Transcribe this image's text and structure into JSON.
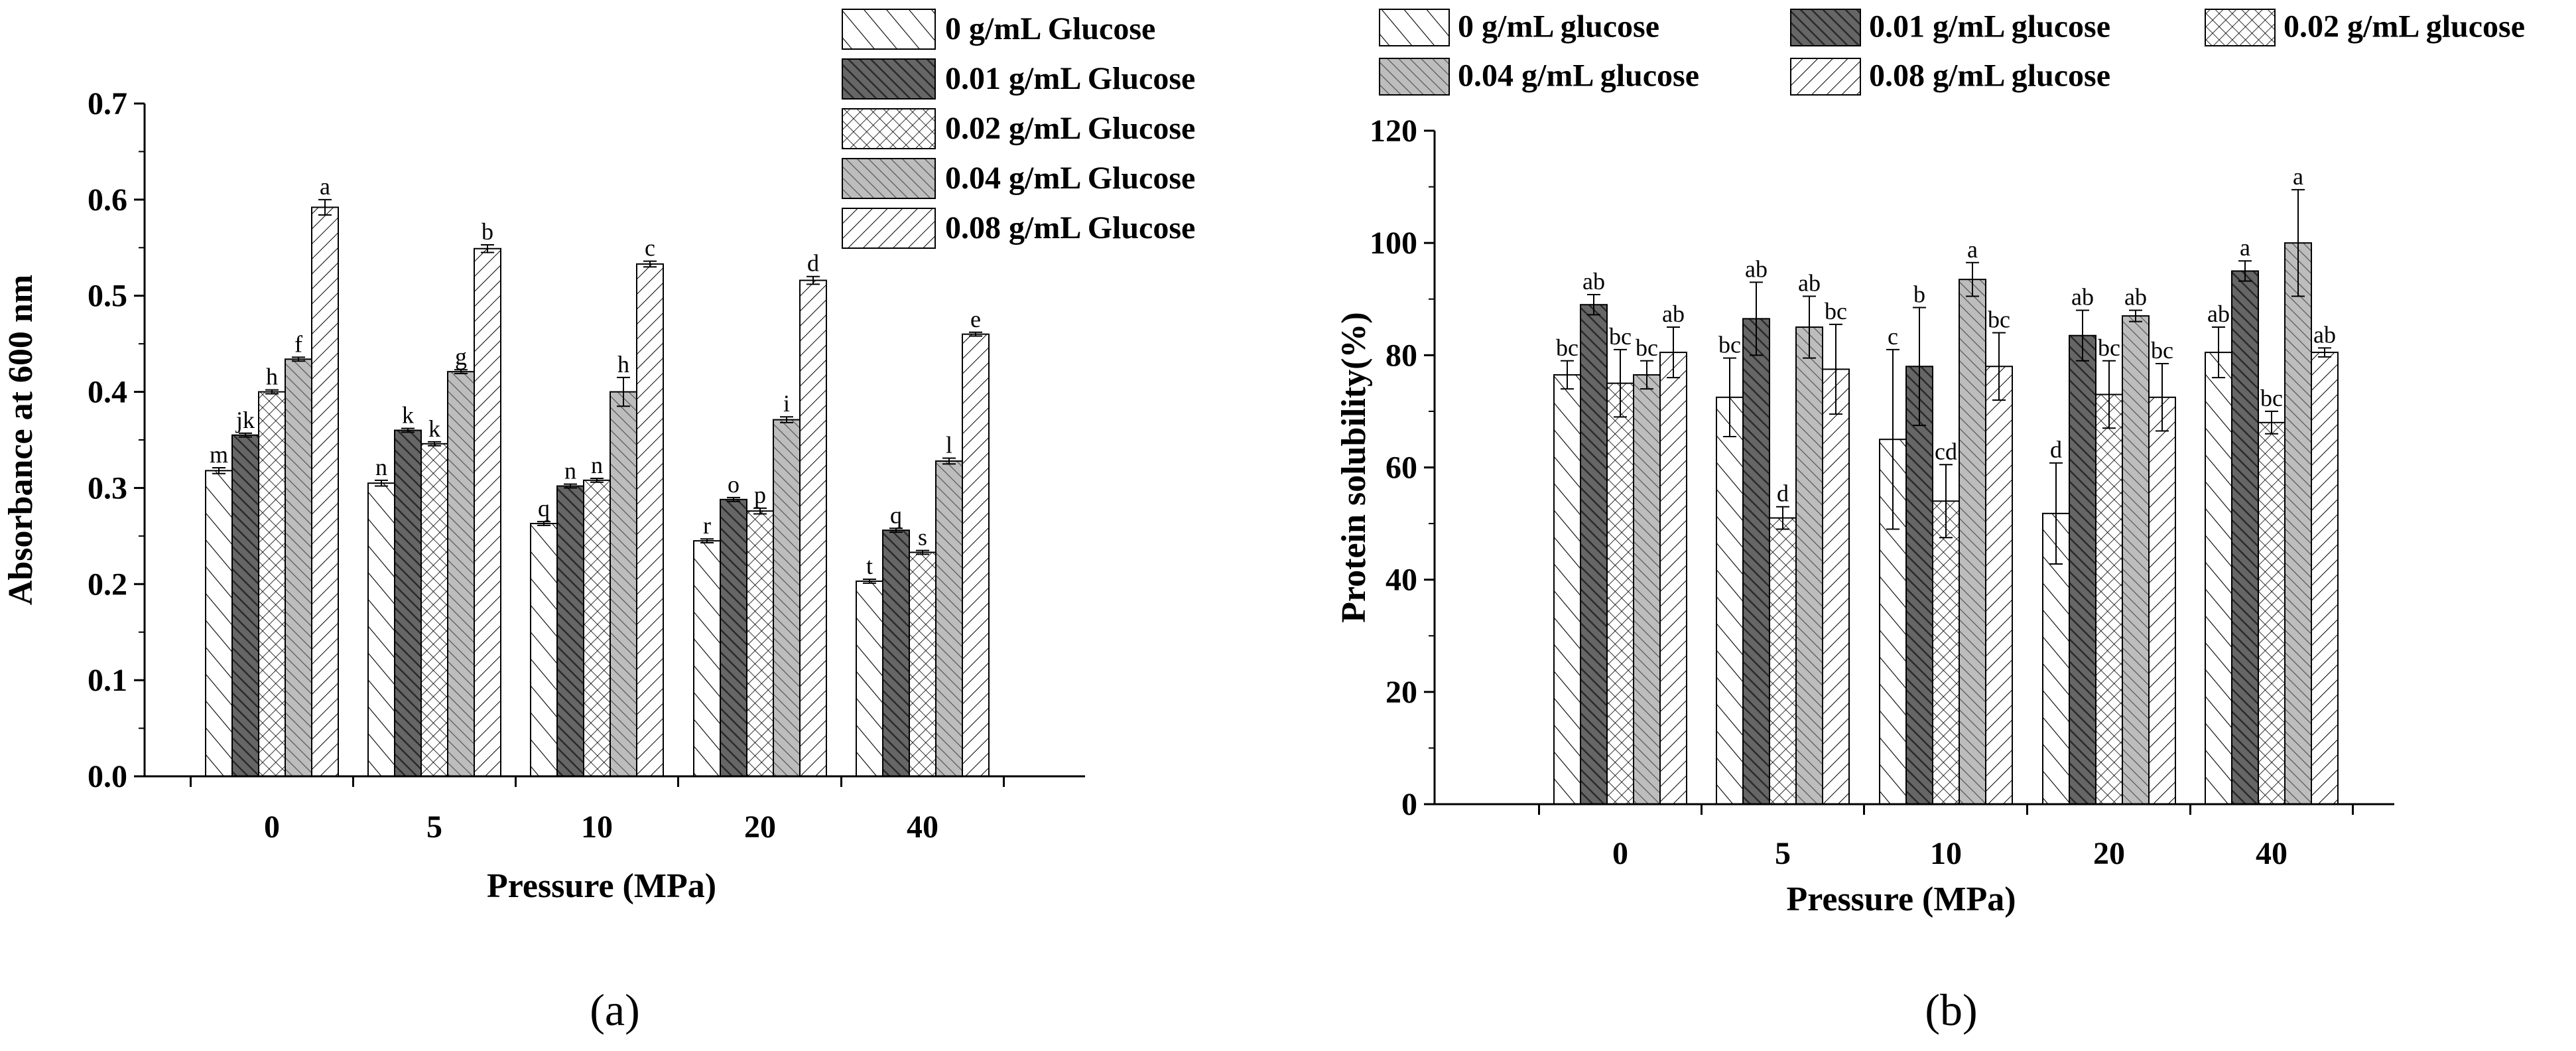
{
  "chart_data": [
    {
      "type": "bar",
      "panel_label": "(a)",
      "title": "",
      "xlabel": "Pressure (MPa)",
      "ylabel": "Absorbance at 600 nm",
      "ylim": [
        0,
        0.7
      ],
      "yticks": [
        "0.0",
        "0.1",
        "0.2",
        "0.3",
        "0.4",
        "0.5",
        "0.6",
        "0.7"
      ],
      "categories": [
        "0",
        "5",
        "10",
        "20",
        "40"
      ],
      "legend_position": "top-right, two-column-free vertical list",
      "series": [
        {
          "name": "0 g/mL Glucose",
          "pattern": "diag-sparse",
          "values": [
            0.318,
            0.305,
            0.263,
            0.245,
            0.203
          ],
          "errors": [
            0.003,
            0.003,
            0.002,
            0.002,
            0.002
          ],
          "letters": [
            "m",
            "n",
            "q",
            "r",
            "t"
          ]
        },
        {
          "name": "0.01 g/mL Glucose",
          "pattern": "dark",
          "values": [
            0.355,
            0.36,
            0.302,
            0.288,
            0.256
          ],
          "errors": [
            0.002,
            0.002,
            0.002,
            0.002,
            0.002
          ],
          "letters": [
            "jk",
            "k",
            "n",
            "o",
            "q"
          ]
        },
        {
          "name": "0.02 g/mL Glucose",
          "pattern": "cross",
          "values": [
            0.4,
            0.346,
            0.308,
            0.276,
            0.233
          ],
          "errors": [
            0.002,
            0.002,
            0.002,
            0.003,
            0.002
          ],
          "letters": [
            "h",
            "k",
            "n",
            "p",
            "s"
          ]
        },
        {
          "name": "0.04 g/mL Glucose",
          "pattern": "gray-diag",
          "values": [
            0.434,
            0.421,
            0.4,
            0.371,
            0.328
          ],
          "errors": [
            0.002,
            0.002,
            0.015,
            0.003,
            0.003
          ],
          "letters": [
            "f",
            "g",
            "h",
            "i",
            "l"
          ]
        },
        {
          "name": "0.08 g/mL Glucose",
          "pattern": "back-diag",
          "values": [
            0.592,
            0.549,
            0.533,
            0.516,
            0.46
          ],
          "errors": [
            0.008,
            0.004,
            0.003,
            0.004,
            0.002
          ],
          "letters": [
            "a",
            "b",
            "c",
            "d",
            "e"
          ]
        }
      ]
    },
    {
      "type": "bar",
      "panel_label": "(b)",
      "title": "",
      "xlabel": "Pressure (MPa)",
      "ylabel": "Protein solubility(%)",
      "ylim": [
        0,
        120
      ],
      "yticks": [
        "0",
        "20",
        "40",
        "60",
        "80",
        "100",
        "120"
      ],
      "categories": [
        "0",
        "5",
        "10",
        "20",
        "40"
      ],
      "legend_position": "top, three-column grid",
      "series": [
        {
          "name": "0 g/mL glucose",
          "pattern": "diag-sparse",
          "values": [
            76.5,
            72.5,
            65.0,
            51.8,
            80.5
          ],
          "errors": [
            2.5,
            7.0,
            16.0,
            9.0,
            4.5
          ],
          "letters": [
            "bc",
            "bc",
            "c",
            "d",
            "ab"
          ]
        },
        {
          "name": "0.01 g/mL glucose",
          "pattern": "dark",
          "values": [
            89.0,
            86.5,
            78.0,
            83.5,
            95.0
          ],
          "errors": [
            1.8,
            6.5,
            10.5,
            4.5,
            1.8
          ],
          "letters": [
            "ab",
            "ab",
            "b",
            "ab",
            "a"
          ]
        },
        {
          "name": "0.02 g/mL glucose",
          "pattern": "cross",
          "values": [
            75.0,
            51.0,
            54.0,
            73.0,
            68.0
          ],
          "errors": [
            6.0,
            2.0,
            6.5,
            6.0,
            2.0
          ],
          "letters": [
            "bc",
            "d",
            "cd",
            "bc",
            "bc"
          ]
        },
        {
          "name": "0.04 g/mL glucose",
          "pattern": "gray-diag",
          "values": [
            76.5,
            85.0,
            93.5,
            87.0,
            100.0
          ],
          "errors": [
            2.5,
            5.5,
            3.0,
            1.0,
            9.5
          ],
          "letters": [
            "bc",
            "ab",
            "a",
            "ab",
            "a"
          ]
        },
        {
          "name": "0.08 g/mL glucose",
          "pattern": "back-diag",
          "values": [
            80.5,
            77.5,
            78.0,
            72.5,
            80.5
          ],
          "errors": [
            4.5,
            8.0,
            6.0,
            6.0,
            0.8
          ],
          "letters": [
            "ab",
            "bc",
            "bc",
            "bc",
            "ab"
          ]
        }
      ]
    }
  ]
}
